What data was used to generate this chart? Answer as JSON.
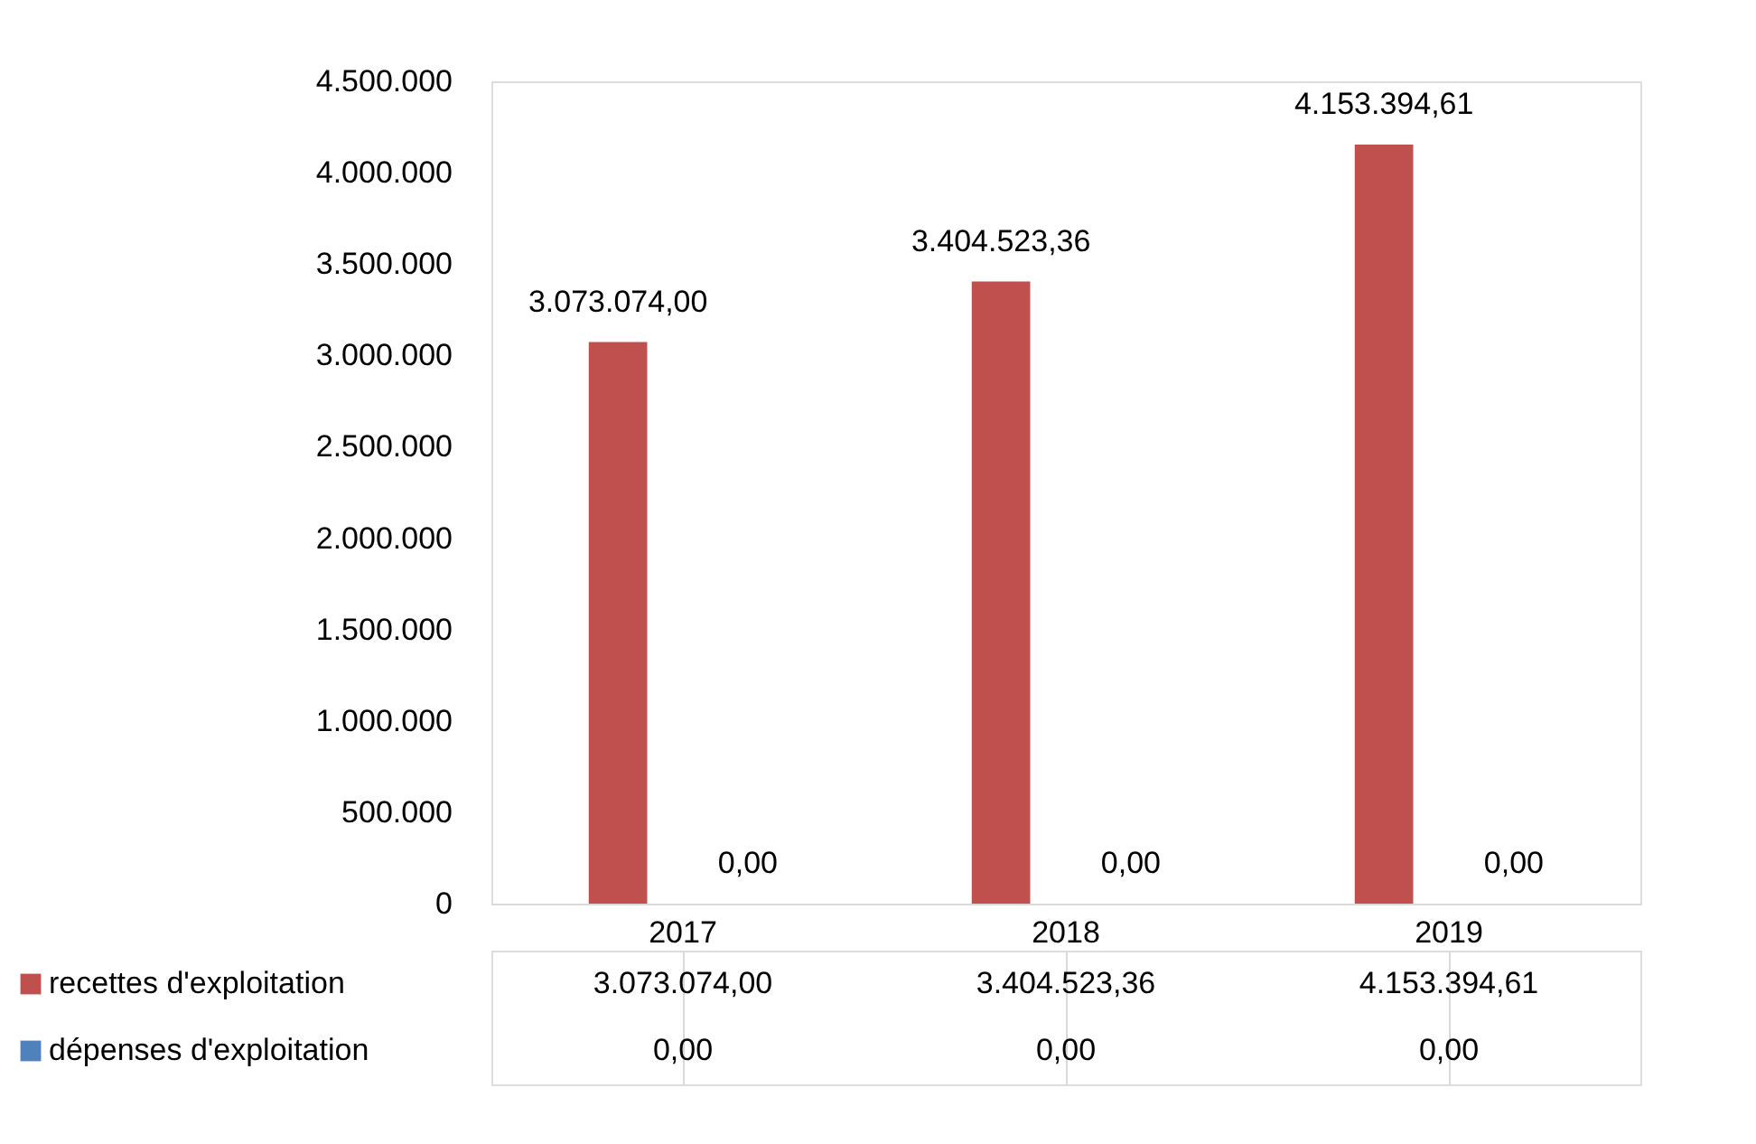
{
  "chart_data": {
    "type": "bar",
    "categories": [
      "2017",
      "2018",
      "2019"
    ],
    "series": [
      {
        "name": "recettes d'exploitation",
        "color": "#c0504d",
        "values": [
          3073074.0,
          3404523.36,
          4153394.61
        ],
        "value_labels": [
          "3.073.074,00",
          "3.404.523,36",
          "4.153.394,61"
        ]
      },
      {
        "name": "dépenses d'exploitation",
        "color": "#4f81bd",
        "values": [
          0,
          0,
          0
        ],
        "value_labels": [
          "0,00",
          "0,00",
          "0,00"
        ]
      }
    ],
    "ylim": [
      0,
      4500000
    ],
    "yticks": [
      0,
      {
        "value": 500000,
        "label": "500.000"
      },
      {
        "value": 1000000,
        "label": "1.000.000"
      },
      {
        "value": 1500000,
        "label": "1.500.000"
      },
      {
        "value": 2000000,
        "label": "2.000.000"
      },
      {
        "value": 2500000,
        "label": "2.500.000"
      },
      {
        "value": 3000000,
        "label": "3.000.000"
      },
      {
        "value": 3500000,
        "label": "3.500.000"
      },
      {
        "value": 4000000,
        "label": "4.000.000"
      },
      {
        "value": 4500000,
        "label": "4.500.000"
      }
    ],
    "grid": false,
    "legend": "bottom left"
  }
}
